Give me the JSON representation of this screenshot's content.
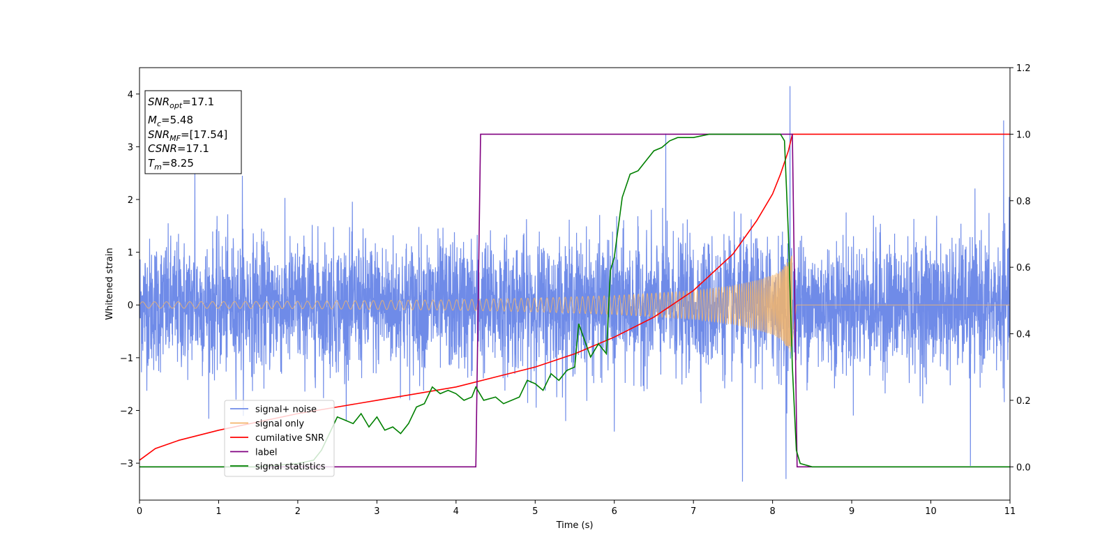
{
  "chart_data": {
    "type": "line",
    "xlabel": "Time (s)",
    "ylabel": "Whitened strain",
    "y2label": "",
    "xlim": [
      0,
      11
    ],
    "ylim": [
      -3.7,
      4.5
    ],
    "y2lim": [
      -0.1,
      1.2
    ],
    "x_ticks": [
      "0",
      "1",
      "2",
      "3",
      "4",
      "5",
      "6",
      "7",
      "8",
      "9",
      "10",
      "11"
    ],
    "y_ticks": [
      "−3",
      "−2",
      "−1",
      "0",
      "1",
      "2",
      "3",
      "4"
    ],
    "y2_ticks": [
      "0.0",
      "0.2",
      "0.4",
      "0.6",
      "0.8",
      "1.0",
      "1.2"
    ],
    "grid": false,
    "legend_position": "lower-left",
    "info_box": {
      "lines": [
        {
          "main": "SNR",
          "sub": "opt",
          "value": "=17.1"
        },
        {
          "main": "M",
          "sub": "c",
          "value": "=5.48"
        },
        {
          "main": "SNR",
          "sub": "MF",
          "value": "=[17.54]"
        },
        {
          "main": "CSNR",
          "sub": "",
          "value": "=17.1"
        },
        {
          "main": "T",
          "sub": "m",
          "value": "=8.25"
        }
      ]
    },
    "series": [
      {
        "name": "signal+ noise",
        "color": "#6f8be8",
        "axis": "left",
        "kind": "noise",
        "typical_amplitude": 1.0,
        "peaks": [
          [
            0.7,
            2.55
          ],
          [
            1.3,
            2.45
          ],
          [
            8.22,
            4.15
          ],
          [
            8.17,
            -3.3
          ],
          [
            7.62,
            -3.35
          ],
          [
            10.92,
            3.5
          ],
          [
            10.5,
            -3.05
          ],
          [
            6.65,
            3.25
          ],
          [
            6.0,
            -2.4
          ]
        ]
      },
      {
        "name": "signal only",
        "color": "#f5b56a",
        "axis": "left",
        "kind": "chirp",
        "envelope": [
          [
            0.0,
            0.06
          ],
          [
            2.0,
            0.07
          ],
          [
            4.0,
            0.1
          ],
          [
            5.0,
            0.13
          ],
          [
            6.0,
            0.18
          ],
          [
            7.0,
            0.27
          ],
          [
            7.5,
            0.37
          ],
          [
            7.8,
            0.47
          ],
          [
            8.0,
            0.57
          ],
          [
            8.1,
            0.65
          ],
          [
            8.25,
            0.95
          ]
        ],
        "end_time": 8.25,
        "after_value": 0.0
      },
      {
        "name": "cumilative SNR",
        "color": "#ff0000",
        "axis": "right",
        "points": [
          [
            0.0,
            0.02
          ],
          [
            0.2,
            0.055
          ],
          [
            0.5,
            0.08
          ],
          [
            1.0,
            0.11
          ],
          [
            1.5,
            0.135
          ],
          [
            2.0,
            0.16
          ],
          [
            2.5,
            0.18
          ],
          [
            3.0,
            0.2
          ],
          [
            3.5,
            0.22
          ],
          [
            4.0,
            0.24
          ],
          [
            4.5,
            0.27
          ],
          [
            5.0,
            0.3
          ],
          [
            5.5,
            0.34
          ],
          [
            6.0,
            0.39
          ],
          [
            6.5,
            0.45
          ],
          [
            7.0,
            0.53
          ],
          [
            7.5,
            0.64
          ],
          [
            7.8,
            0.74
          ],
          [
            8.0,
            0.82
          ],
          [
            8.1,
            0.88
          ],
          [
            8.2,
            0.95
          ],
          [
            8.25,
            1.0
          ],
          [
            11.0,
            1.0
          ]
        ]
      },
      {
        "name": "label",
        "color": "#800080",
        "axis": "right",
        "points": [
          [
            0.0,
            0.0
          ],
          [
            4.25,
            0.0
          ],
          [
            4.31,
            1.0
          ],
          [
            8.25,
            1.0
          ],
          [
            8.31,
            0.0
          ],
          [
            11.0,
            0.0
          ]
        ]
      },
      {
        "name": "signal statistics",
        "color": "#008000",
        "axis": "right",
        "points": [
          [
            0.0,
            0.0
          ],
          [
            1.5,
            0.0
          ],
          [
            2.0,
            0.01
          ],
          [
            2.2,
            0.02
          ],
          [
            2.3,
            0.05
          ],
          [
            2.4,
            0.1
          ],
          [
            2.5,
            0.15
          ],
          [
            2.6,
            0.14
          ],
          [
            2.7,
            0.13
          ],
          [
            2.8,
            0.16
          ],
          [
            2.9,
            0.12
          ],
          [
            3.0,
            0.15
          ],
          [
            3.1,
            0.11
          ],
          [
            3.2,
            0.12
          ],
          [
            3.3,
            0.1
          ],
          [
            3.4,
            0.13
          ],
          [
            3.5,
            0.18
          ],
          [
            3.6,
            0.19
          ],
          [
            3.7,
            0.24
          ],
          [
            3.8,
            0.22
          ],
          [
            3.9,
            0.23
          ],
          [
            4.0,
            0.22
          ],
          [
            4.1,
            0.2
          ],
          [
            4.2,
            0.21
          ],
          [
            4.25,
            0.24
          ],
          [
            4.35,
            0.2
          ],
          [
            4.5,
            0.21
          ],
          [
            4.6,
            0.19
          ],
          [
            4.8,
            0.21
          ],
          [
            4.9,
            0.26
          ],
          [
            5.0,
            0.25
          ],
          [
            5.1,
            0.23
          ],
          [
            5.2,
            0.28
          ],
          [
            5.3,
            0.26
          ],
          [
            5.4,
            0.29
          ],
          [
            5.5,
            0.3
          ],
          [
            5.55,
            0.43
          ],
          [
            5.7,
            0.33
          ],
          [
            5.8,
            0.37
          ],
          [
            5.9,
            0.34
          ],
          [
            5.95,
            0.59
          ],
          [
            6.0,
            0.63
          ],
          [
            6.1,
            0.81
          ],
          [
            6.2,
            0.88
          ],
          [
            6.3,
            0.89
          ],
          [
            6.4,
            0.92
          ],
          [
            6.5,
            0.95
          ],
          [
            6.6,
            0.96
          ],
          [
            6.7,
            0.98
          ],
          [
            6.8,
            0.99
          ],
          [
            7.0,
            0.99
          ],
          [
            7.2,
            1.0
          ],
          [
            7.5,
            1.0
          ],
          [
            7.8,
            1.0
          ],
          [
            8.0,
            1.0
          ],
          [
            8.1,
            1.0
          ],
          [
            8.15,
            0.98
          ],
          [
            8.2,
            0.7
          ],
          [
            8.25,
            0.3
          ],
          [
            8.3,
            0.05
          ],
          [
            8.35,
            0.01
          ],
          [
            8.5,
            0.0
          ],
          [
            11.0,
            0.0
          ]
        ]
      }
    ]
  }
}
